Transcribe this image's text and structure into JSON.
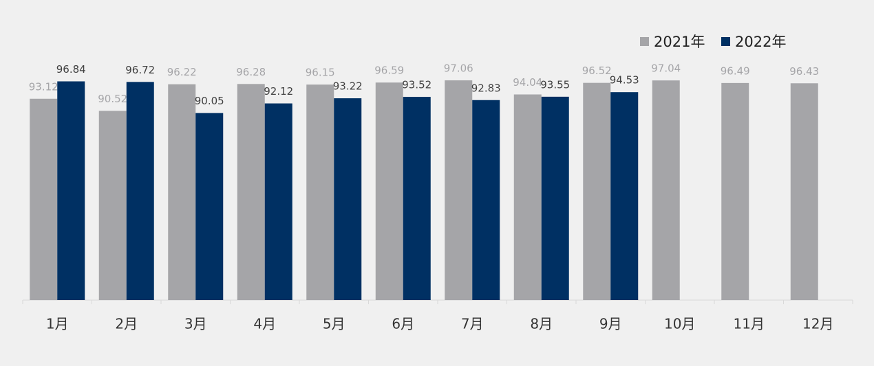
{
  "chart_data": {
    "type": "bar",
    "categories": [
      "1月",
      "2月",
      "3月",
      "4月",
      "5月",
      "6月",
      "7月",
      "8月",
      "9月",
      "10月",
      "11月",
      "12月"
    ],
    "series": [
      {
        "name": "2021年",
        "color": "#a5a5a8",
        "values": [
          93.12,
          90.52,
          96.22,
          96.28,
          96.15,
          96.59,
          97.06,
          94.04,
          96.52,
          97.04,
          96.49,
          96.43
        ]
      },
      {
        "name": "2022年",
        "color": "#003063",
        "values": [
          96.84,
          96.72,
          90.05,
          92.12,
          93.22,
          93.52,
          92.83,
          93.55,
          94.53,
          null,
          null,
          null
        ]
      }
    ],
    "ylim": [
      50,
      100
    ],
    "legend": "upper right"
  }
}
